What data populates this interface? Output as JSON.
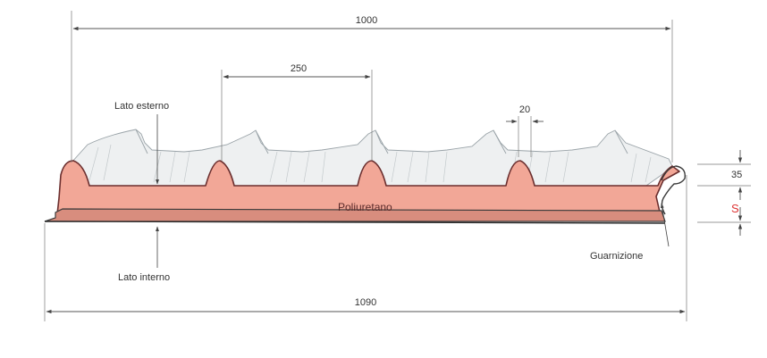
{
  "dimensions": {
    "overall_width": "1000",
    "rib_pitch": "250",
    "rib_top_width": "20",
    "rib_height": "35",
    "core_thickness": "S",
    "total_width": "1090"
  },
  "labels": {
    "outer_side": "Lato esterno",
    "inner_side": "Lato interno",
    "core": "Poliuretano",
    "gasket": "Guarnizione"
  },
  "colors": {
    "core_fill": "#f2a797",
    "core_stroke": "#6b2f2f",
    "sheet_fill": "#eef0f1",
    "sheet_stroke": "#9aa3a8",
    "thickness_text": "#d33333"
  }
}
